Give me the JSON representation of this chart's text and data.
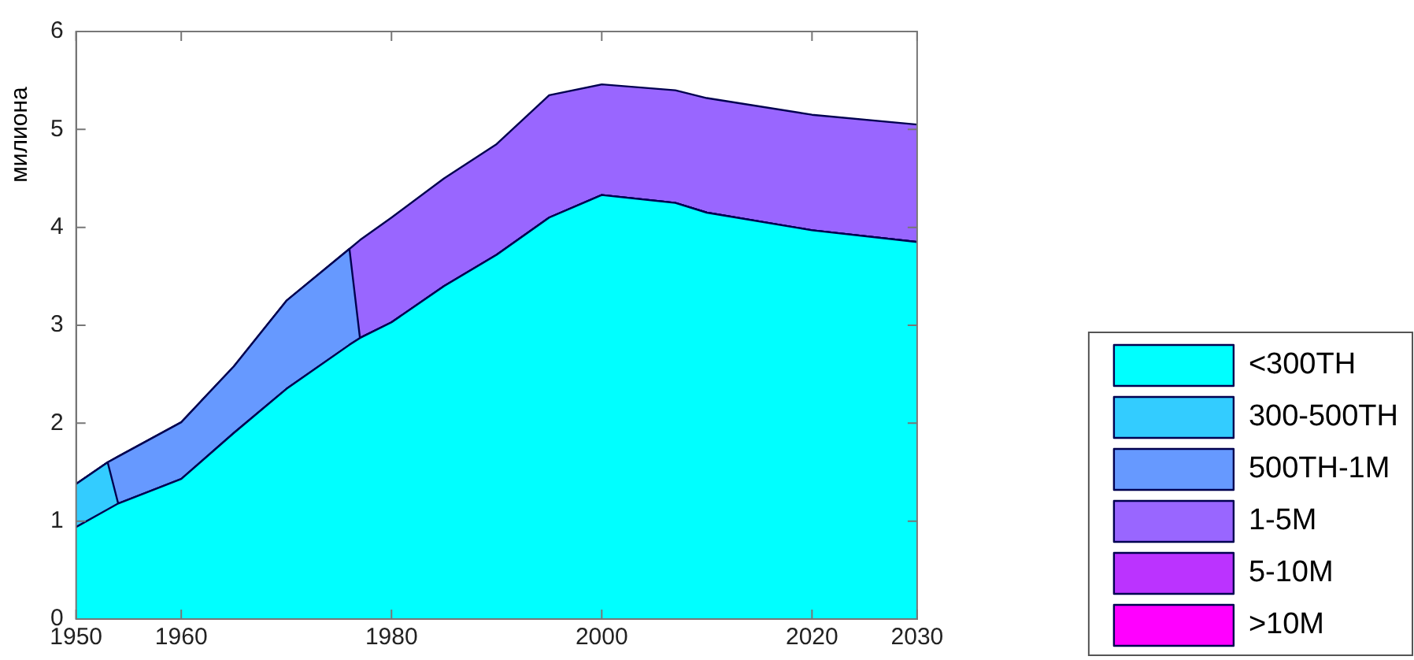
{
  "chart_data": {
    "type": "area",
    "stacked": true,
    "ylabel": "милиона",
    "x": [
      1950,
      1953,
      1954,
      1960,
      1965,
      1970,
      1976,
      1977,
      1980,
      1985,
      1990,
      1995,
      2000,
      2007,
      2010,
      2020,
      2030
    ],
    "xlim": [
      1950,
      2030
    ],
    "xticks": [
      1950,
      1960,
      1980,
      2000,
      2020,
      2030
    ],
    "ylim": [
      0,
      6
    ],
    "yticks": [
      0,
      1,
      2,
      3,
      4,
      5,
      6
    ],
    "legend": "right",
    "marker": "none",
    "series": [
      {
        "name": "<300TH",
        "color": "#00ffff",
        "values": [
          0.94,
          1.12,
          1.18,
          1.43,
          1.9,
          2.35,
          2.8,
          2.87,
          3.03,
          3.4,
          3.72,
          4.1,
          4.33,
          4.25,
          4.15,
          3.97,
          3.85
        ]
      },
      {
        "name": "300-500TH",
        "color": "#33ccff",
        "values": [
          0.44,
          0.48,
          0,
          0,
          0,
          0,
          0,
          0,
          0,
          0,
          0,
          0,
          0,
          0,
          0,
          0,
          0
        ]
      },
      {
        "name": "500TH-1M",
        "color": "#6699ff",
        "values": [
          0,
          0,
          0.48,
          0.58,
          0.68,
          0.9,
          0.98,
          0,
          0,
          0,
          0,
          0,
          0,
          0,
          0,
          0,
          0
        ]
      },
      {
        "name": "1-5M",
        "color": "#9966ff",
        "values": [
          0,
          0,
          0,
          0,
          0,
          0,
          0,
          1.0,
          1.07,
          1.1,
          1.13,
          1.25,
          1.13,
          1.15,
          1.17,
          1.18,
          1.2
        ]
      },
      {
        "name": "5-10M",
        "color": "#bb33ff",
        "values": [
          null,
          null,
          null,
          null,
          null,
          null,
          null,
          null,
          null,
          null,
          null,
          null,
          null,
          null,
          null,
          null,
          null
        ]
      },
      {
        "name": ">10M",
        "color": "#ff00ff",
        "values": [
          null,
          null,
          null,
          null,
          null,
          null,
          null,
          null,
          null,
          null,
          null,
          null,
          null,
          null,
          null,
          null,
          null
        ]
      }
    ]
  }
}
